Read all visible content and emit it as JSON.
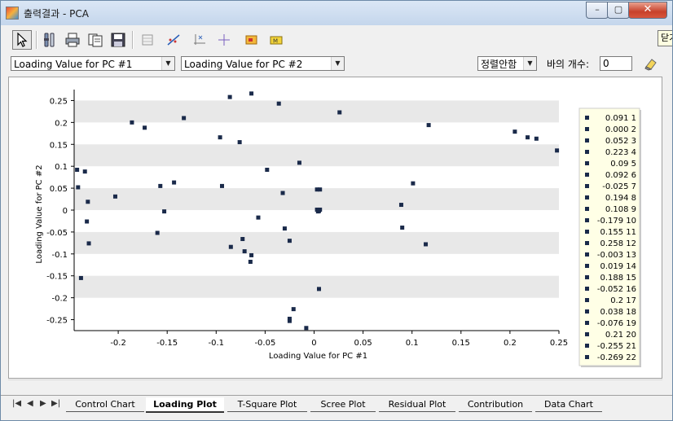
{
  "window": {
    "title": "출력결과 - PCA",
    "minimize": "–",
    "maximize": "▢",
    "close": "✕"
  },
  "tooltip": "닫기",
  "controls": {
    "x_select": "Loading Value for PC #1",
    "y_select": "Loading Value for PC #2",
    "sort_select": "정렬안함",
    "bar_count_label": "바의 개수:",
    "bar_count_value": "0"
  },
  "tabs": [
    "Control Chart",
    "Loading Plot",
    "T-Square Plot",
    "Scree Plot",
    "Residual Plot",
    "Contribution",
    "Data Chart"
  ],
  "active_tab": "Loading Plot",
  "colors": {
    "marker": "#1a2a4a",
    "band": "#e8e8e8",
    "legend_bg": "#ffffe6"
  },
  "chart_data": {
    "type": "scatter",
    "xlabel": "Loading Value for PC #1",
    "ylabel": "Loading Value for PC #2",
    "xlim": [
      -0.245,
      0.25
    ],
    "ylim": [
      -0.275,
      0.275
    ],
    "x_ticks": [
      "-0.2",
      "-0.15",
      "-0.1",
      "-0.05",
      "0",
      "0.05",
      "0.1",
      "0.15",
      "0.2",
      "0.25"
    ],
    "y_ticks": [
      "0.25",
      "0.2",
      "0.15",
      "0.1",
      "0.05",
      "0",
      "-0.05",
      "-0.1",
      "-0.15",
      "-0.2",
      "-0.25"
    ],
    "points": [
      [
        -0.086,
        0.258
      ],
      [
        -0.064,
        0.266
      ],
      [
        -0.036,
        0.243
      ],
      [
        0.026,
        0.223
      ],
      [
        -0.186,
        0.2
      ],
      [
        -0.173,
        0.188
      ],
      [
        -0.133,
        0.21
      ],
      [
        -0.096,
        0.166
      ],
      [
        -0.076,
        0.155
      ],
      [
        0.117,
        0.194
      ],
      [
        0.205,
        0.179
      ],
      [
        0.218,
        0.166
      ],
      [
        0.227,
        0.163
      ],
      [
        0.248,
        0.136
      ],
      [
        -0.242,
        0.092
      ],
      [
        -0.234,
        0.088
      ],
      [
        -0.048,
        0.092
      ],
      [
        -0.015,
        0.108
      ],
      [
        -0.241,
        0.052
      ],
      [
        -0.157,
        0.055
      ],
      [
        -0.143,
        0.063
      ],
      [
        -0.094,
        0.055
      ],
      [
        0.101,
        0.061
      ],
      [
        0.003,
        0.047
      ],
      [
        0.006,
        0.047
      ],
      [
        -0.032,
        0.039
      ],
      [
        -0.203,
        0.031
      ],
      [
        -0.231,
        0.019
      ],
      [
        0.089,
        0.012
      ],
      [
        -0.153,
        -0.003
      ],
      [
        0.003,
        0.001
      ],
      [
        0.004,
        -0.003
      ],
      [
        0.005,
        -0.002
      ],
      [
        0.006,
        0.001
      ],
      [
        -0.057,
        -0.017
      ],
      [
        -0.232,
        -0.026
      ],
      [
        -0.03,
        -0.042
      ],
      [
        0.09,
        -0.04
      ],
      [
        -0.16,
        -0.052
      ],
      [
        -0.073,
        -0.066
      ],
      [
        -0.025,
        -0.07
      ],
      [
        -0.23,
        -0.076
      ],
      [
        0.114,
        -0.078
      ],
      [
        -0.085,
        -0.084
      ],
      [
        -0.071,
        -0.094
      ],
      [
        -0.064,
        -0.103
      ],
      [
        -0.065,
        -0.118
      ],
      [
        -0.238,
        -0.155
      ],
      [
        0.005,
        -0.18
      ],
      [
        -0.021,
        -0.226
      ],
      [
        -0.025,
        -0.248
      ],
      [
        -0.025,
        -0.253
      ],
      [
        -0.008,
        -0.269
      ]
    ],
    "legend": [
      "0.091 1",
      "0.000 2",
      "0.052 3",
      "0.223 4",
      "0.09 5",
      "0.092 6",
      "-0.025 7",
      "0.194 8",
      "0.108 9",
      "-0.179 10",
      "0.155 11",
      "0.258 12",
      "-0.003 13",
      "0.019 14",
      "0.188 15",
      "-0.052 16",
      "0.2 17",
      "0.038 18",
      "-0.076 19",
      "0.21 20",
      "-0.255 21",
      "-0.269 22"
    ]
  }
}
